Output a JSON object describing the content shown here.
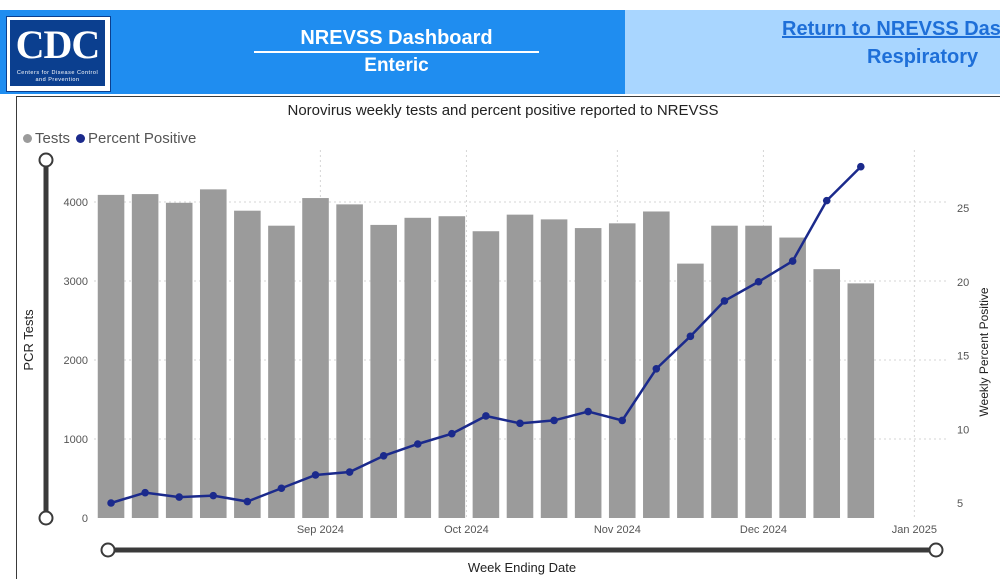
{
  "header": {
    "logo_text": "CDC",
    "logo_subtitle": "Centers for Disease Control and Prevention",
    "title": "NREVSS Dashboard",
    "subtitle": "Enteric",
    "return_link": "Return to NREVSS Dashboard",
    "respiratory_link": "Respiratory"
  },
  "colors": {
    "header_left": "#1f8df0",
    "header_right": "#a9d6ff",
    "link": "#1e6fd8",
    "bar": "#9b9b9b",
    "line": "#1b2a8c"
  },
  "chart_data": {
    "type": "bar",
    "title": "Norovirus weekly tests and percent positive reported to NREVSS",
    "xlabel": "Week Ending Date",
    "ylabel": "PCR Tests",
    "y2label": "Weekly Percent Positive",
    "legend": [
      "Tests",
      "Percent Positive"
    ],
    "legend_position": "top-left",
    "x_tick_labels": [
      "Sep 2024",
      "Oct 2024",
      "Nov 2024",
      "Dec 2024",
      "Jan 2025"
    ],
    "y_ticks": [
      0,
      1000,
      2000,
      3000,
      4000
    ],
    "y_ticks_display": [
      "0",
      "1000",
      "2000",
      "3000",
      "4000"
    ],
    "y2_ticks": [
      5,
      10,
      15,
      20,
      25
    ],
    "ylim": [
      0,
      4400
    ],
    "y2lim": [
      4,
      28.5
    ],
    "grid": true,
    "weeks": [
      "2024-07-20",
      "2024-07-27",
      "2024-08-03",
      "2024-08-10",
      "2024-08-17",
      "2024-08-24",
      "2024-08-31",
      "2024-09-07",
      "2024-09-14",
      "2024-09-21",
      "2024-09-28",
      "2024-10-05",
      "2024-10-12",
      "2024-10-19",
      "2024-10-26",
      "2024-11-02",
      "2024-11-09",
      "2024-11-16",
      "2024-11-23",
      "2024-11-30",
      "2024-12-07",
      "2024-12-14",
      "2024-12-21",
      "2024-12-28",
      "2025-01-04"
    ],
    "series": [
      {
        "name": "Tests",
        "type": "bar",
        "axis": "left",
        "values": [
          4090,
          4100,
          3990,
          4160,
          3890,
          3700,
          4050,
          3970,
          3710,
          3800,
          3820,
          3630,
          3840,
          3780,
          3670,
          3730,
          3880,
          3220,
          3700,
          3700,
          3550,
          3150,
          2970,
          null,
          null
        ]
      },
      {
        "name": "Percent Positive",
        "type": "line",
        "axis": "right",
        "values": [
          5.0,
          5.7,
          5.4,
          5.5,
          5.1,
          6.0,
          6.9,
          7.1,
          8.2,
          9.0,
          9.7,
          10.9,
          10.4,
          10.6,
          11.2,
          10.6,
          14.1,
          16.3,
          18.7,
          20.0,
          21.4,
          25.5,
          27.8,
          null,
          null
        ]
      }
    ]
  }
}
